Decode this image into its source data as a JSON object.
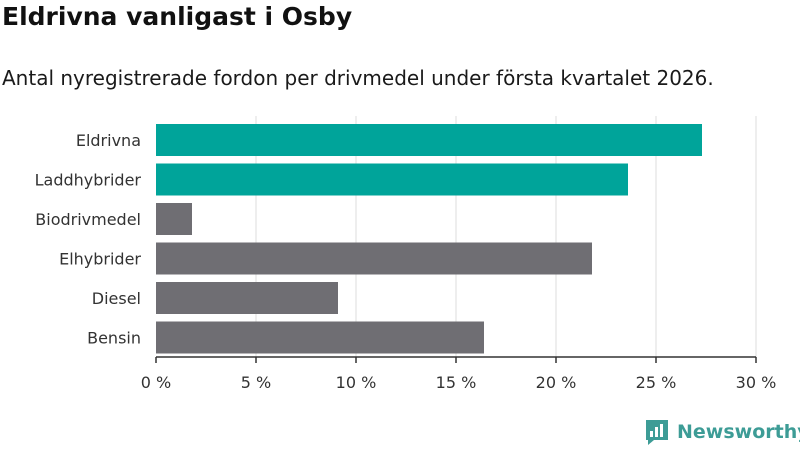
{
  "header": {
    "title": "Eldrivna vanligast i Osby",
    "subtitle": "Antal nyregistrerade fordon per drivmedel under första kvartalet 2026."
  },
  "chart_data": {
    "type": "bar",
    "orientation": "horizontal",
    "categories": [
      "Eldrivna",
      "Laddhybrider",
      "Biodrivmedel",
      "Elhybrider",
      "Diesel",
      "Bensin"
    ],
    "values": [
      27.3,
      23.6,
      1.8,
      21.8,
      9.1,
      16.4
    ],
    "highlight": [
      true,
      true,
      false,
      false,
      false,
      false
    ],
    "xlim": [
      0,
      30
    ],
    "x_ticks": [
      0,
      5,
      10,
      15,
      20,
      25,
      30
    ],
    "x_tick_labels": [
      "0 %",
      "5 %",
      "10 %",
      "15 %",
      "20 %",
      "25 %",
      "30 %"
    ],
    "grid": true,
    "colors": {
      "highlight": "#00a49a",
      "default": "#6f6e73",
      "grid": "#dcdcdc",
      "axis": "#333333"
    }
  },
  "brand": {
    "name": "Newsworthy",
    "color": "#3d9c96",
    "icon": "newsworthy-logo-icon"
  }
}
